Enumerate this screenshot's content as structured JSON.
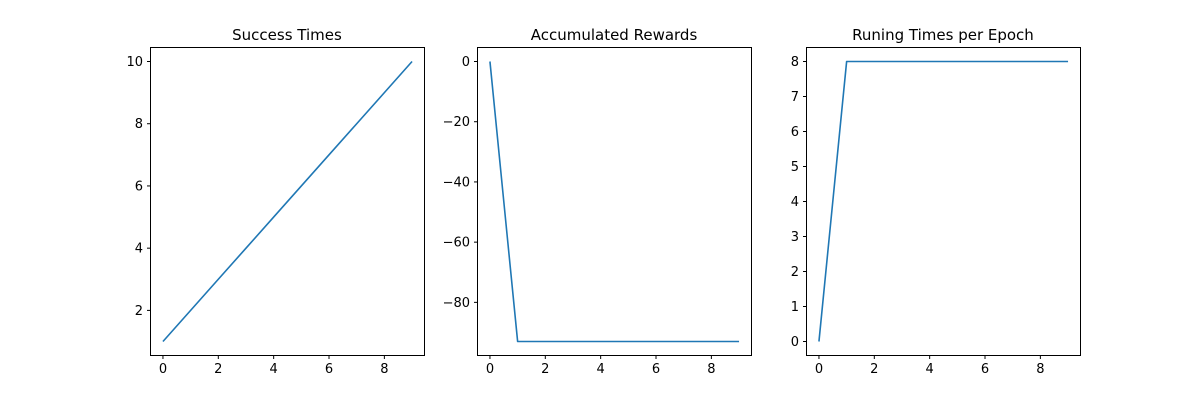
{
  "chart_data": [
    {
      "type": "line",
      "title": "Success Times",
      "xlabel": "",
      "ylabel": "",
      "x": [
        0,
        1,
        2,
        3,
        4,
        5,
        6,
        7,
        8,
        9
      ],
      "series": [
        {
          "values": [
            1,
            2,
            3,
            4,
            5,
            6,
            7,
            8,
            9,
            10
          ],
          "color": "#1f77b4"
        }
      ],
      "xlim": [
        -0.45,
        9.45
      ],
      "ylim": [
        0.55,
        10.45
      ],
      "xticks": [
        0,
        2,
        4,
        6,
        8
      ],
      "yticks": [
        2,
        4,
        6,
        8,
        10
      ],
      "grid": false,
      "legend": "none"
    },
    {
      "type": "line",
      "title": "Accumulated Rewards",
      "xlabel": "",
      "ylabel": "",
      "x": [
        0,
        1,
        2,
        3,
        4,
        5,
        6,
        7,
        8,
        9
      ],
      "series": [
        {
          "values": [
            0,
            -93,
            -93,
            -93,
            -93,
            -93,
            -93,
            -93,
            -93,
            -93
          ],
          "color": "#1f77b4"
        }
      ],
      "xlim": [
        -0.45,
        9.45
      ],
      "ylim": [
        -97.65,
        4.65
      ],
      "xticks": [
        0,
        2,
        4,
        6,
        8
      ],
      "yticks": [
        0,
        -20,
        -40,
        -60,
        -80
      ],
      "grid": false,
      "legend": "none"
    },
    {
      "type": "line",
      "title": "Runing Times per Epoch",
      "xlabel": "",
      "ylabel": "",
      "x": [
        0,
        1,
        2,
        3,
        4,
        5,
        6,
        7,
        8,
        9
      ],
      "series": [
        {
          "values": [
            0,
            8,
            8,
            8,
            8,
            8,
            8,
            8,
            8,
            8
          ],
          "color": "#1f77b4"
        }
      ],
      "xlim": [
        -0.45,
        9.45
      ],
      "ylim": [
        -0.4,
        8.4
      ],
      "xticks": [
        0,
        2,
        4,
        6,
        8
      ],
      "yticks": [
        0,
        1,
        2,
        3,
        4,
        5,
        6,
        7,
        8
      ],
      "grid": false,
      "legend": "none"
    }
  ]
}
